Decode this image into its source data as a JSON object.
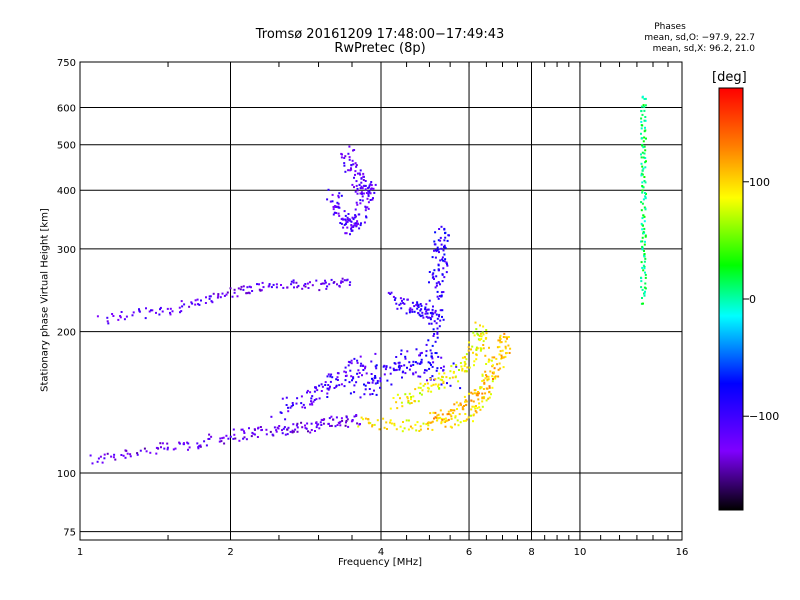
{
  "header": {
    "title_line1": "Tromsø 20161209 17:48:00−17:49:43",
    "title_line2": "RwPretec (8p)",
    "stats_heading": "Phases",
    "stats_o": "mean, sd,O: −97.9, 22.7",
    "stats_x": "mean, sd,X:  96.2, 21.0"
  },
  "colorbar": {
    "unit": "[deg]",
    "range": [
      -180,
      180
    ],
    "ticks": [
      {
        "value": 100,
        "label": "100"
      },
      {
        "value": 0,
        "label": "0"
      },
      {
        "value": -100,
        "label": "−100"
      }
    ],
    "colors": {
      "low": "#000000",
      "violet": "#7f00ff",
      "blue": "#0000ff",
      "cyan": "#00ffff",
      "green": "#00ff00",
      "yellow": "#ffff00",
      "orange": "#ff8000",
      "high": "#ff0000"
    }
  },
  "chart_data": {
    "type": "scatter",
    "title": "Tromsø 20161209 17:48:00−17:49:43",
    "subtitle": "RwPretec (8p)",
    "xlabel": "Frequency [MHz]",
    "ylabel": "Stationary phase Virtual Height [km]",
    "x_scale": "log",
    "y_scale": "log",
    "xlim": [
      1,
      16
    ],
    "ylim": [
      72,
      750
    ],
    "x_ticks": [
      {
        "value": 1,
        "label": "1"
      },
      {
        "value": 2,
        "label": "2"
      },
      {
        "value": 4,
        "label": "4"
      },
      {
        "value": 6,
        "label": "6"
      },
      {
        "value": 8,
        "label": "8"
      },
      {
        "value": 10,
        "label": "10"
      },
      {
        "value": 16,
        "label": "16"
      }
    ],
    "y_ticks": [
      {
        "value": 75,
        "label": "75"
      },
      {
        "value": 100,
        "label": "100"
      },
      {
        "value": 200,
        "label": "200"
      },
      {
        "value": 300,
        "label": "300"
      },
      {
        "value": 400,
        "label": "400"
      },
      {
        "value": 500,
        "label": "500"
      },
      {
        "value": 600,
        "label": "600"
      },
      {
        "value": 750,
        "label": "750"
      }
    ],
    "grid": true,
    "color_scale": "phase [deg]",
    "traces": [
      {
        "x": [
          1.05,
          1.2,
          1.4,
          1.6,
          1.8,
          2.0,
          2.2,
          2.4,
          2.6,
          2.8,
          3.0,
          3.2,
          3.4,
          3.6
        ],
        "y": [
          106,
          110,
          112,
          114,
          117,
          120,
          122,
          123,
          124,
          125,
          127,
          128,
          129,
          130
        ],
        "phase": -125,
        "spread": 0.025
      },
      {
        "x": [
          1.1,
          1.3,
          1.5,
          1.7,
          1.9,
          2.1,
          2.3,
          2.6,
          2.9,
          3.2,
          3.5
        ],
        "y": [
          212,
          218,
          222,
          231,
          238,
          245,
          249,
          252,
          250,
          253,
          256
        ],
        "phase": -120,
        "spread": 0.02
      },
      {
        "x": [
          2.5,
          2.8,
          3.0,
          3.2,
          3.4,
          3.6,
          3.8
        ],
        "y": [
          135,
          142,
          148,
          155,
          162,
          168,
          172
        ],
        "phase": -105,
        "spread": 0.04
      },
      {
        "x": [
          3.2,
          3.3,
          3.4,
          3.5,
          3.6,
          3.7,
          3.8
        ],
        "y": [
          395,
          360,
          340,
          330,
          345,
          375,
          420
        ],
        "phase": -110,
        "spread": 0.03
      },
      {
        "x": [
          3.4,
          3.5,
          3.6,
          3.7,
          3.8
        ],
        "y": [
          480,
          450,
          420,
          400,
          390
        ],
        "phase": -115,
        "spread": 0.03
      },
      {
        "x": [
          3.6,
          3.8,
          4.0,
          4.2,
          4.4,
          4.6,
          4.8,
          5.0,
          5.2,
          5.5
        ],
        "y": [
          150,
          155,
          160,
          165,
          170,
          172,
          175,
          170,
          165,
          160
        ],
        "phase": -95,
        "spread": 0.05
      },
      {
        "x": [
          4.2,
          4.5,
          4.8,
          5.0,
          5.2
        ],
        "y": [
          235,
          228,
          222,
          218,
          215
        ],
        "phase": -100,
        "spread": 0.03
      },
      {
        "x": [
          5.0,
          5.1,
          5.2,
          5.3,
          5.3,
          5.2,
          5.1
        ],
        "y": [
          180,
          210,
          250,
          290,
          330,
          280,
          240
        ],
        "phase": -90,
        "spread": 0.03
      },
      {
        "x": [
          3.6,
          4.0,
          4.5,
          5.0,
          5.5,
          6.0,
          6.3,
          6.5,
          6.6,
          6.5
        ],
        "y": [
          128,
          127,
          126,
          127,
          128,
          132,
          140,
          150,
          165,
          185
        ],
        "phase": 95,
        "spread": 0.025
      },
      {
        "x": [
          4.3,
          4.6,
          4.9,
          5.2,
          5.5,
          5.8,
          6.0,
          6.2,
          6.3,
          6.3
        ],
        "y": [
          140,
          145,
          150,
          155,
          160,
          168,
          175,
          185,
          195,
          205
        ],
        "phase": 85,
        "spread": 0.03
      },
      {
        "x": [
          5.0,
          5.3,
          5.6,
          5.9,
          6.2,
          6.5,
          6.8,
          7.0,
          7.1,
          7.0
        ],
        "y": [
          130,
          132,
          135,
          140,
          148,
          156,
          166,
          178,
          190,
          200
        ],
        "phase": 110,
        "spread": 0.025
      },
      {
        "x": [
          13.4,
          13.4,
          13.4,
          13.4,
          13.4,
          13.4,
          13.4,
          13.4
        ],
        "y": [
          230,
          270,
          310,
          360,
          420,
          480,
          550,
          640
        ],
        "phase": 10,
        "spread": 0.01
      }
    ]
  }
}
